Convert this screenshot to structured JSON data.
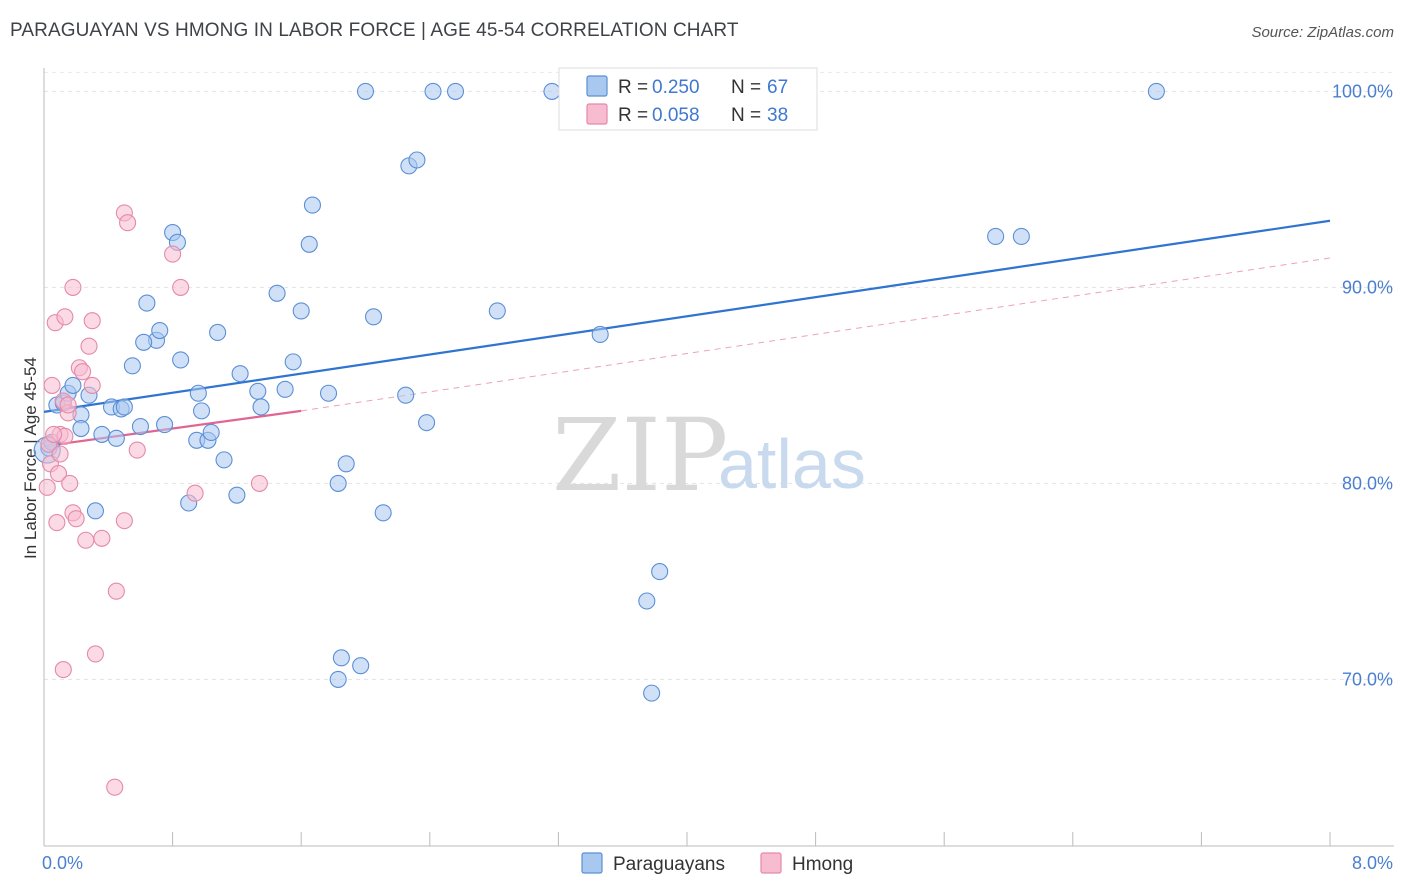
{
  "header": {
    "title": "PARAGUAYAN VS HMONG IN LABOR FORCE | AGE 45-54 CORRELATION CHART",
    "source": "Source: ZipAtlas.com"
  },
  "watermark": {
    "zip": "ZIP",
    "atlas": "atlas"
  },
  "legend_top": {
    "rows": [
      {
        "r_label": "R = ",
        "r_value": "0.250",
        "n_label": "N = ",
        "n_value": "67",
        "color": "#a9c8f0"
      },
      {
        "r_label": "R = ",
        "r_value": "0.058",
        "n_label": "N = ",
        "n_value": "38",
        "color": "#f7bcd0"
      }
    ]
  },
  "legend_bottom": {
    "items": [
      "Paraguayans",
      "Hmong"
    ]
  },
  "colors": {
    "blue_fill": "#a9c8f0",
    "blue_stroke": "#5b8fd6",
    "blue_line": "#2f74d0",
    "pink_fill": "#f7bcd0",
    "pink_stroke": "#e48aaa",
    "pink_line": "#e06592"
  },
  "chart_data": {
    "type": "scatter",
    "title": "PARAGUAYAN VS HMONG IN LABOR FORCE | AGE 45-54 CORRELATION CHART",
    "xlabel": "",
    "ylabel": "In Labor Force | Age 45-54",
    "xlim": [
      0,
      8
    ],
    "ylim": [
      61.5,
      101.5
    ],
    "x_tick_labels": [
      "0.0%",
      "8.0%"
    ],
    "y_ticks": [
      70,
      80,
      90,
      100
    ],
    "y_tick_labels": [
      "70.0%",
      "80.0%",
      "90.0%",
      "100.0%"
    ],
    "grid": true,
    "series": [
      {
        "name": "Paraguayans",
        "R": 0.25,
        "N": 67,
        "trend": {
          "x0": 0.0,
          "y0": 83.65,
          "x1": 8.0,
          "y1": 93.4,
          "style": "solid"
        },
        "points": [
          [
            0.03,
            81.8
          ],
          [
            0.05,
            82.1
          ],
          [
            0.08,
            84.0
          ],
          [
            0.12,
            84.1
          ],
          [
            0.15,
            84.6
          ],
          [
            0.18,
            85.0
          ],
          [
            0.23,
            83.5
          ],
          [
            0.23,
            82.8
          ],
          [
            0.28,
            84.5
          ],
          [
            0.32,
            78.6
          ],
          [
            0.36,
            82.5
          ],
          [
            0.42,
            83.9
          ],
          [
            0.45,
            82.3
          ],
          [
            0.48,
            83.8
          ],
          [
            0.55,
            86.0
          ],
          [
            0.6,
            82.9
          ],
          [
            0.64,
            89.2
          ],
          [
            0.7,
            87.3
          ],
          [
            0.72,
            87.8
          ],
          [
            0.75,
            83.0
          ],
          [
            0.8,
            92.8
          ],
          [
            0.83,
            92.3
          ],
          [
            0.85,
            86.3
          ],
          [
            0.9,
            79.0
          ],
          [
            0.95,
            82.2
          ],
          [
            0.96,
            84.6
          ],
          [
            0.98,
            83.7
          ],
          [
            1.02,
            82.2
          ],
          [
            1.04,
            82.6
          ],
          [
            1.08,
            87.7
          ],
          [
            1.12,
            81.2
          ],
          [
            1.2,
            79.4
          ],
          [
            1.22,
            85.6
          ],
          [
            1.33,
            84.7
          ],
          [
            1.45,
            89.7
          ],
          [
            1.5,
            84.8
          ],
          [
            1.55,
            86.2
          ],
          [
            1.6,
            88.8
          ],
          [
            1.65,
            92.2
          ],
          [
            1.67,
            94.2
          ],
          [
            1.77,
            84.6
          ],
          [
            1.83,
            80.0
          ],
          [
            1.85,
            71.1
          ],
          [
            1.83,
            70.0
          ],
          [
            1.88,
            81.0
          ],
          [
            1.97,
            70.7
          ],
          [
            2.0,
            100.0
          ],
          [
            2.05,
            88.5
          ],
          [
            2.11,
            78.5
          ],
          [
            2.25,
            84.5
          ],
          [
            2.27,
            96.2
          ],
          [
            2.32,
            96.5
          ],
          [
            2.38,
            83.1
          ],
          [
            2.42,
            100.0
          ],
          [
            2.56,
            100.0
          ],
          [
            2.82,
            88.8
          ],
          [
            3.16,
            100.0
          ],
          [
            3.46,
            87.6
          ],
          [
            3.75,
            74.0
          ],
          [
            3.83,
            75.5
          ],
          [
            3.78,
            69.3
          ],
          [
            5.92,
            92.6
          ],
          [
            6.08,
            92.6
          ],
          [
            6.92,
            100.0
          ],
          [
            1.35,
            83.9
          ],
          [
            0.5,
            83.9
          ],
          [
            0.62,
            87.2
          ]
        ]
      },
      {
        "name": "Hmong",
        "R": 0.058,
        "N": 38,
        "trend_solid": {
          "x0": 0.0,
          "y0": 81.9,
          "x1": 1.6,
          "y1": 83.7
        },
        "trend_dashed": {
          "x0": 1.6,
          "y0": 83.7,
          "x1": 8.0,
          "y1": 91.5
        },
        "points": [
          [
            0.02,
            79.8
          ],
          [
            0.03,
            82.0
          ],
          [
            0.04,
            81.0
          ],
          [
            0.05,
            85.0
          ],
          [
            0.07,
            88.2
          ],
          [
            0.08,
            78.0
          ],
          [
            0.09,
            80.5
          ],
          [
            0.1,
            82.5
          ],
          [
            0.1,
            81.5
          ],
          [
            0.12,
            70.5
          ],
          [
            0.12,
            84.2
          ],
          [
            0.13,
            88.5
          ],
          [
            0.15,
            83.6
          ],
          [
            0.16,
            80.0
          ],
          [
            0.18,
            90.0
          ],
          [
            0.18,
            78.5
          ],
          [
            0.2,
            78.2
          ],
          [
            0.22,
            85.9
          ],
          [
            0.24,
            85.7
          ],
          [
            0.26,
            77.1
          ],
          [
            0.28,
            87.0
          ],
          [
            0.3,
            88.3
          ],
          [
            0.3,
            85.0
          ],
          [
            0.32,
            71.3
          ],
          [
            0.36,
            77.2
          ],
          [
            0.44,
            64.5
          ],
          [
            0.45,
            74.5
          ],
          [
            0.5,
            93.8
          ],
          [
            0.52,
            93.3
          ],
          [
            0.5,
            78.1
          ],
          [
            0.58,
            81.7
          ],
          [
            0.8,
            91.7
          ],
          [
            0.85,
            90.0
          ],
          [
            0.94,
            79.5
          ],
          [
            1.34,
            80.0
          ],
          [
            0.13,
            82.4
          ],
          [
            0.06,
            82.5
          ],
          [
            0.15,
            84.0
          ]
        ]
      }
    ]
  }
}
